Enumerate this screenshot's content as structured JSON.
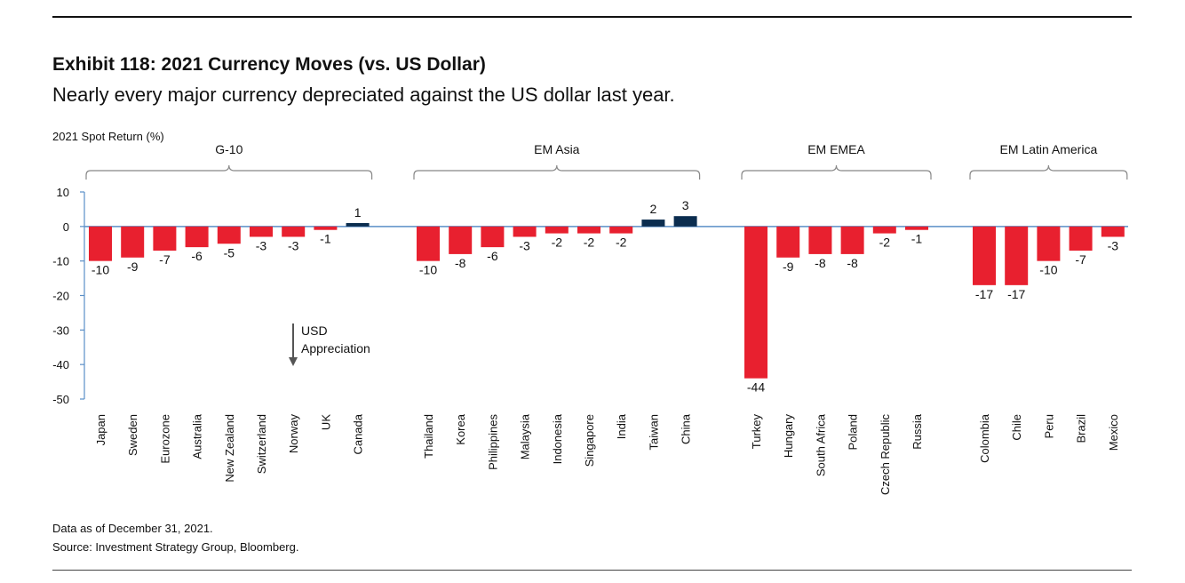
{
  "header": {
    "title": "Exhibit 118: 2021 Currency Moves (vs. US Dollar)",
    "subtitle": "Nearly every major currency depreciated against the US dollar last year."
  },
  "footer": {
    "note": "Data as of December 31, 2021.",
    "source": "Source: Investment Strategy Group, Bloomberg."
  },
  "colors": {
    "negative": "#e8202f",
    "positive": "#0b2d4f",
    "axis": "#5b8fc7",
    "bracket": "#888888"
  },
  "chart_data": {
    "type": "bar",
    "ylabel": "2021 Spot Return (%)",
    "ylim": [
      -50,
      10
    ],
    "yticks": [
      10,
      0,
      -10,
      -20,
      -30,
      -40,
      -50
    ],
    "annotation": {
      "line1": "USD",
      "line2": "Appreciation"
    },
    "groups": [
      {
        "name": "G-10",
        "categories": [
          "Japan",
          "Sweden",
          "Eurozone",
          "Australia",
          "New Zealand",
          "Switzerland",
          "Norway",
          "UK",
          "Canada"
        ],
        "values": [
          -10,
          -9,
          -7,
          -6,
          -5,
          -3,
          -3,
          -1,
          1
        ]
      },
      {
        "name": "EM Asia",
        "categories": [
          "Thailand",
          "Korea",
          "Philippines",
          "Malaysia",
          "Indonesia",
          "Singapore",
          "India",
          "Taiwan",
          "China"
        ],
        "values": [
          -10,
          -8,
          -6,
          -3,
          -2,
          -2,
          -2,
          2,
          3
        ]
      },
      {
        "name": "EM EMEA",
        "categories": [
          "Turkey",
          "Hungary",
          "South Africa",
          "Poland",
          "Czech Republic",
          "Russia"
        ],
        "values": [
          -44,
          -9,
          -8,
          -8,
          -2,
          -1
        ]
      },
      {
        "name": "EM Latin America",
        "categories": [
          "Colombia",
          "Chile",
          "Peru",
          "Brazil",
          "Mexico"
        ],
        "values": [
          -17,
          -17,
          -10,
          -7,
          -3
        ]
      }
    ]
  }
}
